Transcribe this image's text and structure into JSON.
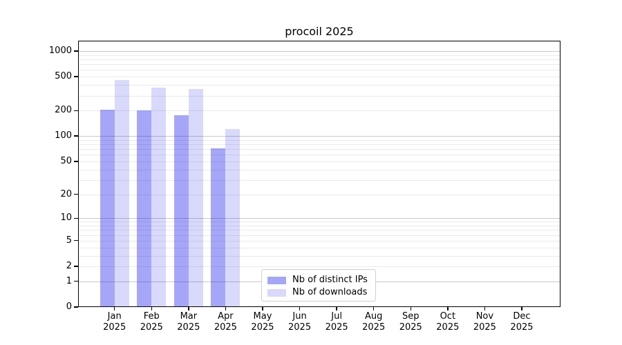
{
  "chart_data": {
    "type": "bar",
    "title": "procoil 2025",
    "x_months": [
      "Jan",
      "Feb",
      "Mar",
      "Apr",
      "May",
      "Jun",
      "Jul",
      "Aug",
      "Sep",
      "Oct",
      "Nov",
      "Dec"
    ],
    "x_year": "2025",
    "y_ticks": [
      0,
      1,
      2,
      5,
      10,
      20,
      50,
      100,
      200,
      500,
      1000
    ],
    "y_scale": "log10(value+1)",
    "ylim": [
      0,
      1280
    ],
    "grid": true,
    "legend_position": "inside-bottom-center",
    "series": [
      {
        "name": "Nb of distinct IPs",
        "color": "#a6a6f8",
        "fill": "rgba(0,0,235,0.35)",
        "values": [
          203,
          199,
          177,
          72,
          0,
          0,
          0,
          0,
          0,
          0,
          0,
          0
        ]
      },
      {
        "name": "Nb of downloads",
        "color": "#d9d9fb",
        "fill": "rgba(0,0,235,0.15)",
        "values": [
          455,
          370,
          360,
          122,
          0,
          0,
          0,
          0,
          0,
          0,
          0,
          0
        ]
      }
    ]
  },
  "colors": {
    "grid_major": "#c8c8c8",
    "grid_minor": "#eaeaea",
    "axis": "#000000",
    "legend_border": "#cfcfcf",
    "background": "#ffffff"
  }
}
